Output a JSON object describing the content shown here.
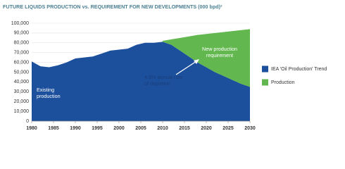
{
  "chart_data": {
    "type": "area",
    "title": "FUTURE LIQUIDS PRODUCTION vs. REQUIREMENT FOR NEW DEVELOPMENTS (000 bpd)²",
    "x": [
      1980,
      1982,
      1984,
      1986,
      1988,
      1990,
      1992,
      1994,
      1996,
      1998,
      2000,
      2002,
      2004,
      2006,
      2008,
      2010,
      2012,
      2014,
      2016,
      2018,
      2020,
      2022,
      2024,
      2026,
      2028,
      2030
    ],
    "series": [
      {
        "name": "IEA 'Oil Production' Trend",
        "color": "#1c4f9c",
        "values": [
          61000,
          56000,
          55000,
          57000,
          60000,
          64000,
          65000,
          66000,
          69000,
          72000,
          73000,
          74000,
          78000,
          80000,
          80000,
          81000,
          78000,
          72000,
          66000,
          60000,
          55000,
          50000,
          46000,
          42000,
          38000,
          35000
        ]
      },
      {
        "name": "Production",
        "color": "#62b84f",
        "values": [
          null,
          null,
          null,
          null,
          null,
          null,
          null,
          null,
          null,
          null,
          null,
          null,
          null,
          null,
          null,
          1000,
          5500,
          13000,
          20500,
          28000,
          34000,
          40000,
          45000,
          50000,
          55000,
          59000
        ]
      }
    ],
    "stacked": true,
    "annotations": [
      [
        "Existing",
        "production"
      ],
      [
        "4.5% annual rate",
        "of depletion"
      ],
      [
        "New production",
        "requirement"
      ]
    ],
    "xlim": [
      1980,
      2030
    ],
    "xticks": [
      1980,
      1985,
      1990,
      1995,
      2000,
      2005,
      2010,
      2015,
      2020,
      2025,
      2030
    ],
    "ylim": [
      0,
      100000
    ],
    "yticks": [
      0,
      {
        "value": 10000,
        "label": "10,000"
      },
      {
        "value": 20000,
        "label": "20,000"
      },
      {
        "value": 30000,
        "label": "30,000"
      },
      {
        "value": 40000,
        "label": "40,000"
      },
      {
        "value": 50000,
        "label": "50,000"
      },
      {
        "value": 60000,
        "label": "60,000"
      },
      {
        "value": 70000,
        "label": "70,000"
      },
      {
        "value": 80000,
        "label": "80,000"
      },
      {
        "value": 90000,
        "label": "90,000"
      },
      {
        "value": 100000,
        "label": "100,000"
      }
    ],
    "grid": true,
    "legend": "right"
  }
}
